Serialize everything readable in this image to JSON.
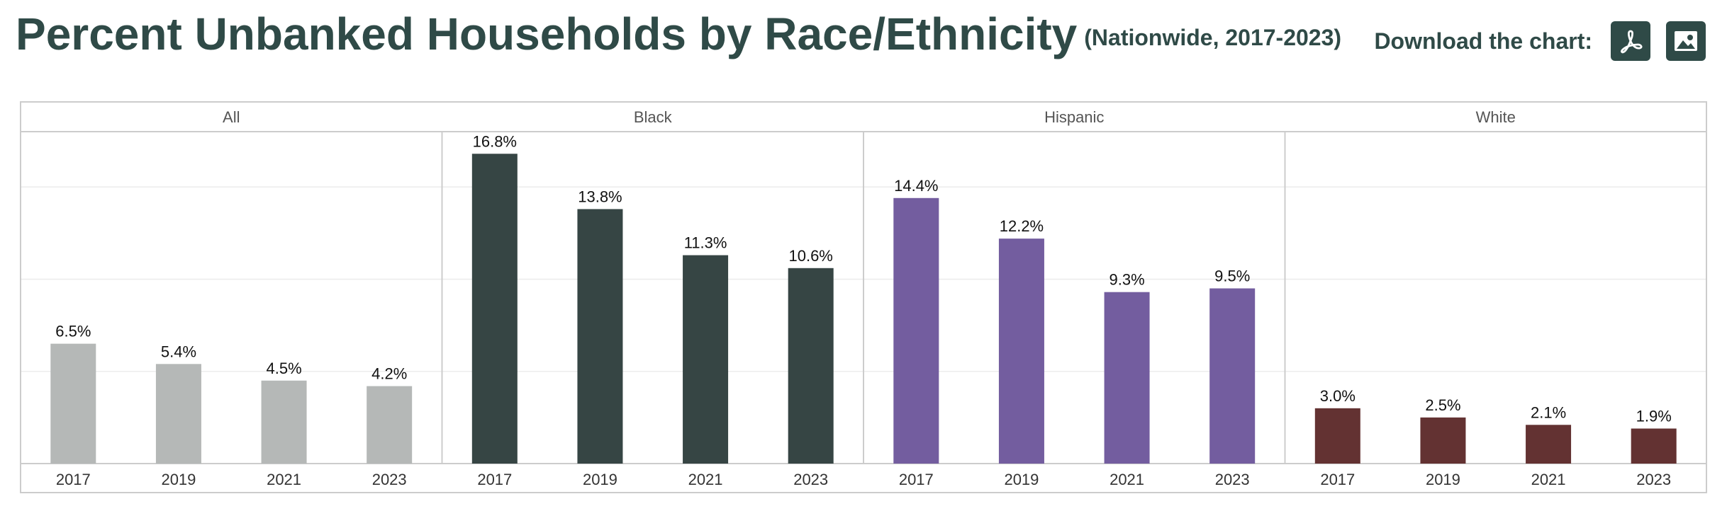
{
  "header": {
    "title": "Percent Unbanked Households by Race/Ethnicity",
    "subtitle": "(Nationwide, 2017-2023)",
    "download_label": "Download the chart:",
    "download_buttons": [
      {
        "icon": "pdf-icon"
      },
      {
        "icon": "image-icon"
      }
    ]
  },
  "colors": {
    "title": "#2f4a47",
    "All": "#b5b8b7",
    "Black": "#364544",
    "Hispanic": "#735d9f",
    "White": "#633232",
    "frame": "#cccccc",
    "grid": "#ececec"
  },
  "chart_data": {
    "type": "bar",
    "layout": "faceted",
    "categories": [
      "2017",
      "2019",
      "2021",
      "2023"
    ],
    "ylim": [
      0,
      18
    ],
    "grid": true,
    "value_suffix": "%",
    "facets": [
      {
        "name": "All",
        "values": [
          6.5,
          5.4,
          4.5,
          4.2
        ],
        "labels": [
          "6.5%",
          "5.4%",
          "4.5%",
          "4.2%"
        ]
      },
      {
        "name": "Black",
        "values": [
          16.8,
          13.8,
          11.3,
          10.6
        ],
        "labels": [
          "16.8%",
          "13.8%",
          "11.3%",
          "10.6%"
        ]
      },
      {
        "name": "Hispanic",
        "values": [
          14.4,
          12.2,
          9.3,
          9.5
        ],
        "labels": [
          "14.4%",
          "12.2%",
          "9.3%",
          "9.5%"
        ]
      },
      {
        "name": "White",
        "values": [
          3.0,
          2.5,
          2.1,
          1.9
        ],
        "labels": [
          "3.0%",
          "2.5%",
          "2.1%",
          "1.9%"
        ]
      }
    ]
  }
}
